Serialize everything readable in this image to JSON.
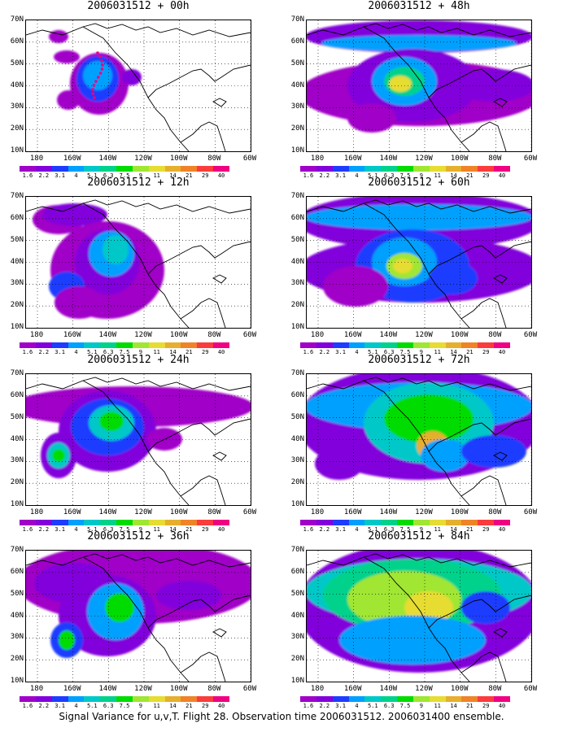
{
  "panels": [
    {
      "title": "2006031512 + 00h"
    },
    {
      "title": "2006031512 + 48h"
    },
    {
      "title": "2006031512 + 12h"
    },
    {
      "title": "2006031512 + 60h"
    },
    {
      "title": "2006031512 + 24h"
    },
    {
      "title": "2006031512 + 72h"
    },
    {
      "title": "2006031512 + 36h"
    },
    {
      "title": "2006031512 + 84h"
    }
  ],
  "y_ticks": [
    "70N",
    "60N",
    "50N",
    "40N",
    "30N",
    "20N",
    "10N"
  ],
  "x_ticks": [
    "180",
    "160W",
    "140W",
    "120W",
    "100W",
    "80W",
    "60W"
  ],
  "colorbar": {
    "colors": [
      "#a000c8",
      "#8200dc",
      "#1e3cff",
      "#00a0ff",
      "#00c8c8",
      "#00d28c",
      "#00dc00",
      "#a0e632",
      "#e6dc32",
      "#e6af2d",
      "#f08228",
      "#fa3c3c",
      "#f00082"
    ],
    "labels": [
      "1.6",
      "2.2",
      "3.1",
      "4",
      "5.1",
      "6.3",
      "7.5",
      "9",
      "11",
      "14",
      "21",
      "29",
      "40"
    ]
  },
  "caption": "Signal Variance for u,v,T. Flight 28. Observation time 2006031512. 2006031400 ensemble."
}
